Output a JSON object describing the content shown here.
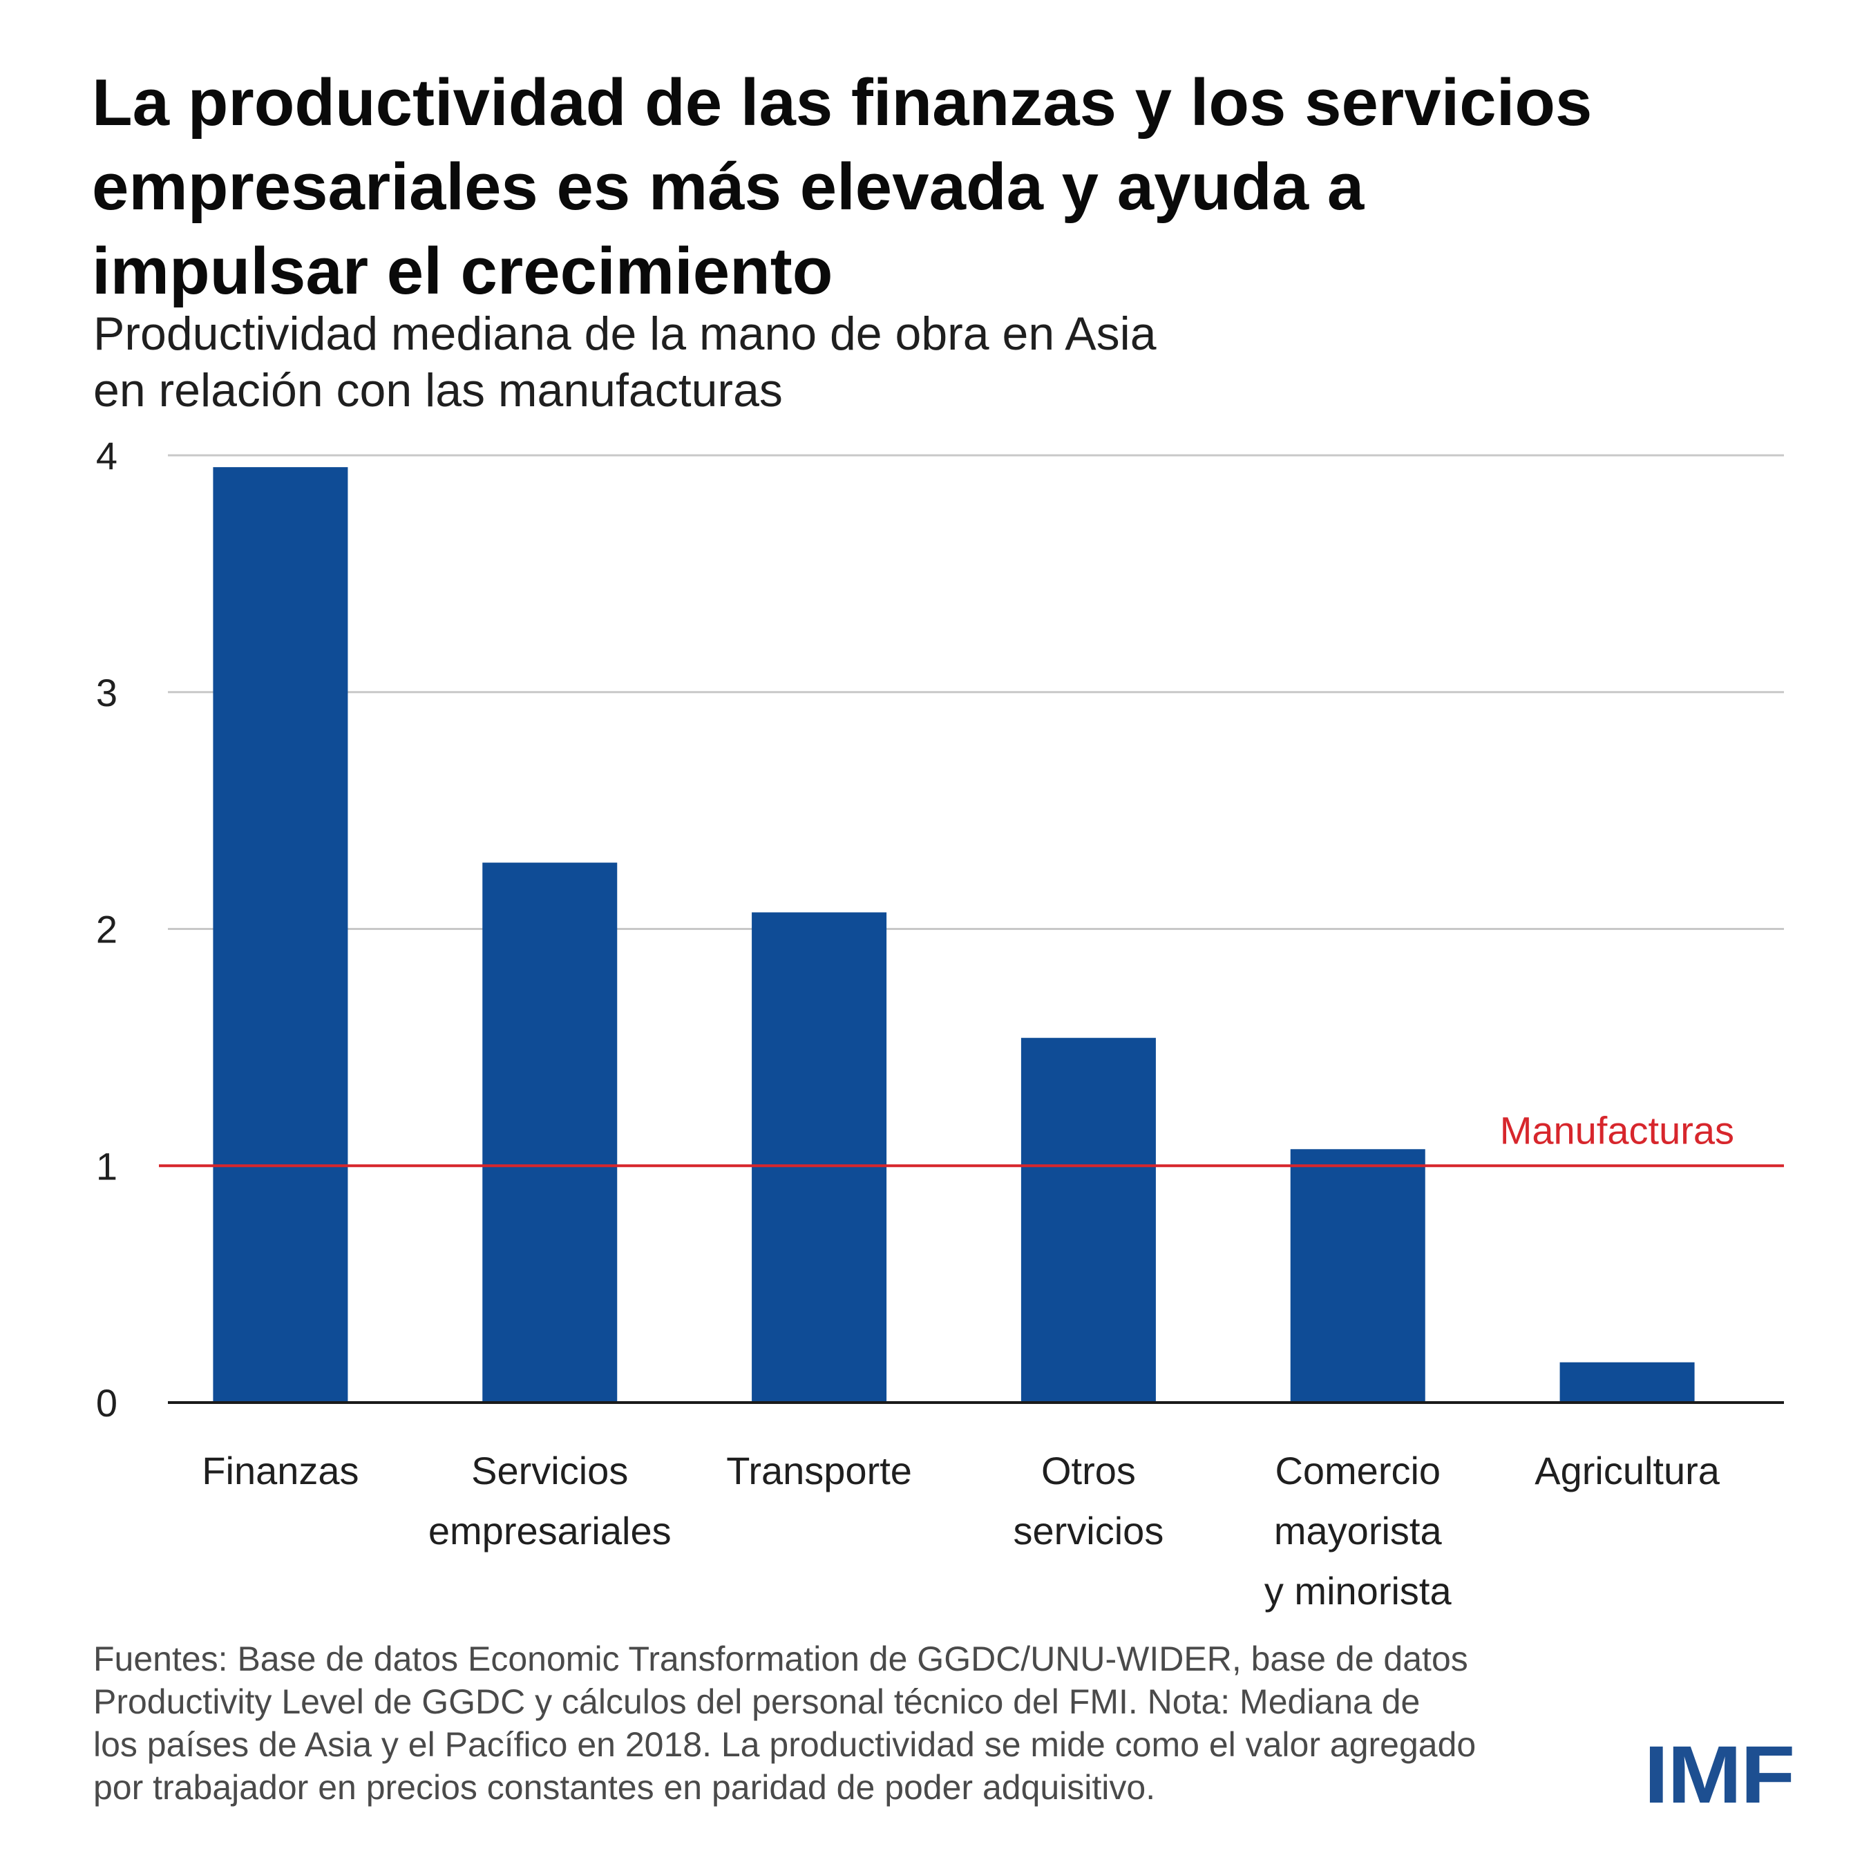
{
  "header": {
    "title_lines": [
      "La productividad de las finanzas y los servicios",
      "empresariales es más elevada y ayuda a",
      "impulsar el crecimiento"
    ],
    "subtitle_lines": [
      "Productividad mediana de la mano de obra en Asia",
      "en relación con las manufacturas"
    ]
  },
  "chart_data": {
    "type": "bar",
    "title": "La productividad de las finanzas y los servicios empresariales es más elevada y ayuda a impulsar el crecimiento",
    "subtitle": "Productividad mediana de la mano de obra en Asia en relación con las manufacturas",
    "categories": [
      [
        "Finanzas"
      ],
      [
        "Servicios",
        "empresariales"
      ],
      [
        "Transporte"
      ],
      [
        "Otros",
        "servicios"
      ],
      [
        "Comercio",
        "mayorista",
        "y minorista"
      ],
      [
        "Agricultura"
      ]
    ],
    "values": [
      3.95,
      2.28,
      2.07,
      1.54,
      1.07,
      0.17
    ],
    "ylim": [
      0,
      4
    ],
    "yticks": [
      0,
      1,
      2,
      3,
      4
    ],
    "xlabel": "",
    "ylabel": "",
    "grid": true,
    "reference_line": {
      "value": 1,
      "label": "Manufacturas",
      "color": "#d7262c"
    },
    "bar_color": "#0f4c96",
    "grid_color": "#c8c8c8",
    "axis_color": "#1a1a1a"
  },
  "footer": {
    "note_lines": [
      "Fuentes: Base de datos Economic Transformation de GGDC/UNU-WIDER, base de datos",
      "Productivity Level de GGDC y cálculos del personal técnico del FMI. Nota: Mediana de",
      "los países de Asia y el Pacífico en 2018. La productividad se mide como el valor agregado",
      "por trabajador en precios constantes en paridad de poder adquisitivo."
    ],
    "logo_text": "IMF",
    "logo_color": "#1d4f91"
  }
}
